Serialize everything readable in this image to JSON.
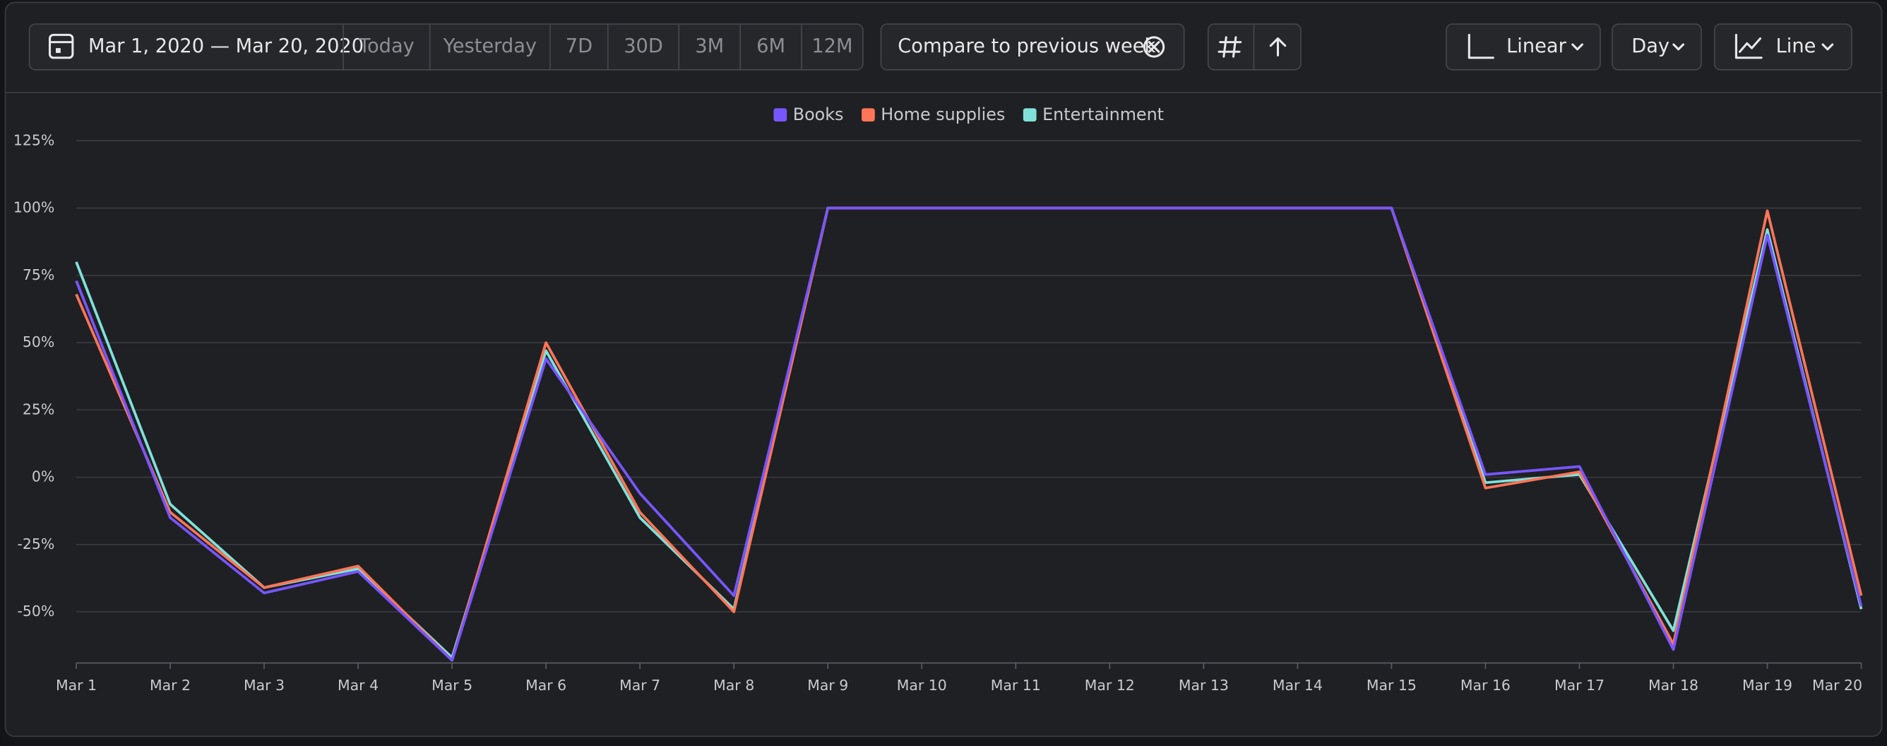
{
  "toolbar": {
    "date_range": "Mar 1, 2020 — Mar 20, 2020",
    "presets": [
      "Today",
      "Yesterday",
      "7D",
      "30D",
      "3M",
      "6M",
      "12M"
    ],
    "compare": "Compare to previous week",
    "scale": "Linear",
    "interval": "Day",
    "chart_kind": "Line"
  },
  "chart_data": {
    "type": "line",
    "categories": [
      "Mar 1",
      "Mar 2",
      "Mar 3",
      "Mar 4",
      "Mar 5",
      "Mar 6",
      "Mar 7",
      "Mar 8",
      "Mar 9",
      "Mar 10",
      "Mar 11",
      "Mar 12",
      "Mar 13",
      "Mar 14",
      "Mar 15",
      "Mar 16",
      "Mar 17",
      "Mar 18",
      "Mar 19",
      "Mar 20"
    ],
    "series": [
      {
        "name": "Books",
        "color": "#7856ff",
        "values": [
          73,
          -15,
          -43,
          -35,
          -68,
          44,
          -6,
          -44,
          100,
          100,
          100,
          100,
          100,
          100,
          100,
          1,
          4,
          -64,
          90,
          -48
        ]
      },
      {
        "name": "Home supplies",
        "color": "#ff7557",
        "values": [
          68,
          -13,
          -41,
          -33,
          -68,
          50,
          -13,
          -50,
          100,
          100,
          100,
          100,
          100,
          100,
          100,
          -4,
          2,
          -62,
          99,
          -44
        ]
      },
      {
        "name": "Entertainment",
        "color": "#80e1d9",
        "values": [
          80,
          -10,
          -41,
          -34,
          -67,
          47,
          -15,
          -49,
          100,
          100,
          100,
          100,
          100,
          100,
          100,
          -2,
          1,
          -57,
          92,
          -49
        ]
      }
    ],
    "ylim": [
      -69,
      125
    ],
    "yticks": [
      {
        "value": -50,
        "label": "-50%"
      },
      {
        "value": -25,
        "label": "-25%"
      },
      {
        "value": 0,
        "label": "0%"
      },
      {
        "value": 25,
        "label": "25%"
      },
      {
        "value": 50,
        "label": "50%"
      },
      {
        "value": 75,
        "label": "75%"
      },
      {
        "value": 100,
        "label": "100%"
      },
      {
        "value": 125,
        "label": "125%"
      }
    ],
    "grid": true,
    "legend": "top"
  }
}
